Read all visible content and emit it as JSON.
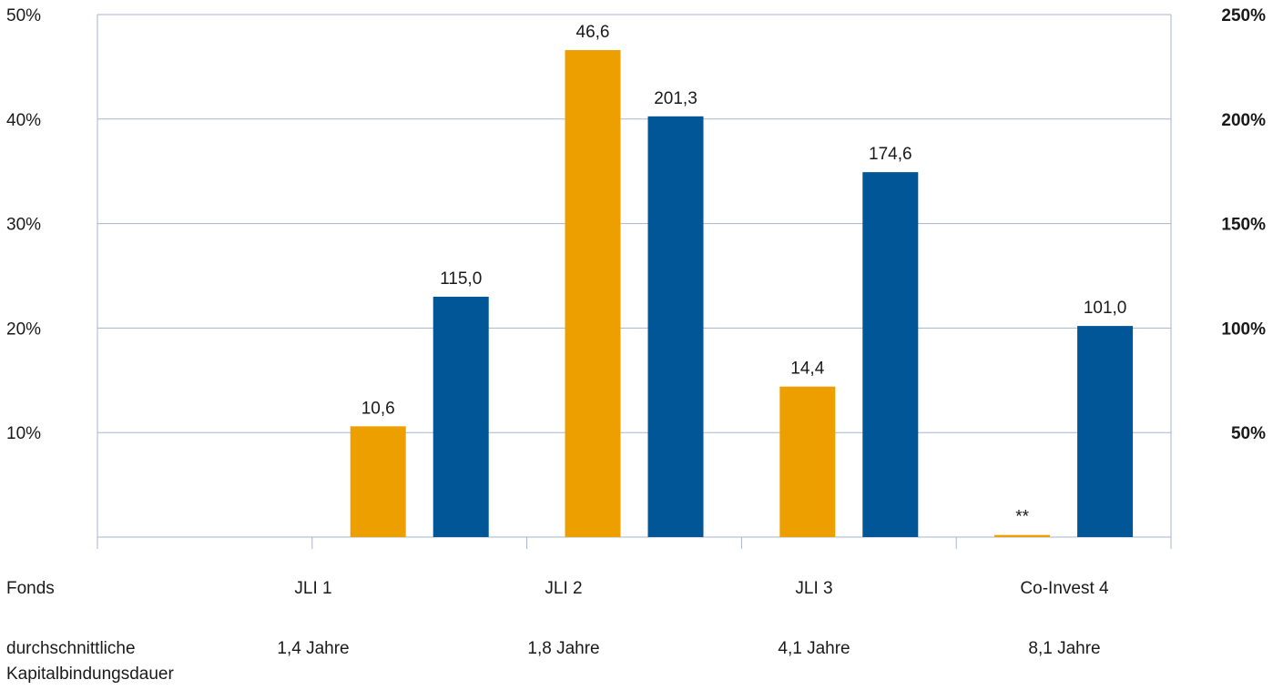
{
  "chart_data": {
    "type": "bar",
    "categories": [
      "",
      "JLI 1",
      "JLI 2",
      "JLI 3",
      "Co-Invest 4"
    ],
    "series": [
      {
        "axis": "left",
        "color": "#ee9f00",
        "values": [
          null,
          10.6,
          46.6,
          14.4,
          0.2
        ],
        "labels": [
          "",
          "10,6",
          "46,6",
          "14,4",
          "**"
        ]
      },
      {
        "axis": "right",
        "color": "#005696",
        "values": [
          null,
          115.0,
          201.3,
          174.6,
          101.0
        ],
        "labels": [
          "",
          "115,0",
          "201,3",
          "174,6",
          "101,0"
        ]
      }
    ],
    "y_left": {
      "ylim": [
        0,
        50
      ],
      "tick_values": [
        10,
        20,
        30,
        40,
        50
      ],
      "tick_labels": [
        "10%",
        "20%",
        "30%",
        "40%",
        "50%"
      ]
    },
    "y_right": {
      "ylim": [
        0,
        250
      ],
      "tick_values": [
        50,
        100,
        150,
        200,
        250
      ],
      "tick_labels": [
        "50%",
        "100%",
        "150%",
        "200%",
        "250%"
      ]
    },
    "grid": true,
    "gridline_color": "#a6b6cf",
    "table": {
      "fund_header": "Fonds",
      "duration_header_line1": "durchschnittliche",
      "duration_header_line2": "Kapitalbindungsdauer",
      "funds": [
        "JLI 1",
        "JLI 2",
        "JLI 3",
        "Co-Invest 4"
      ],
      "durations": [
        "1,4 Jahre",
        "1,8 Jahre",
        "4,1 Jahre",
        "8,1 Jahre"
      ]
    }
  }
}
